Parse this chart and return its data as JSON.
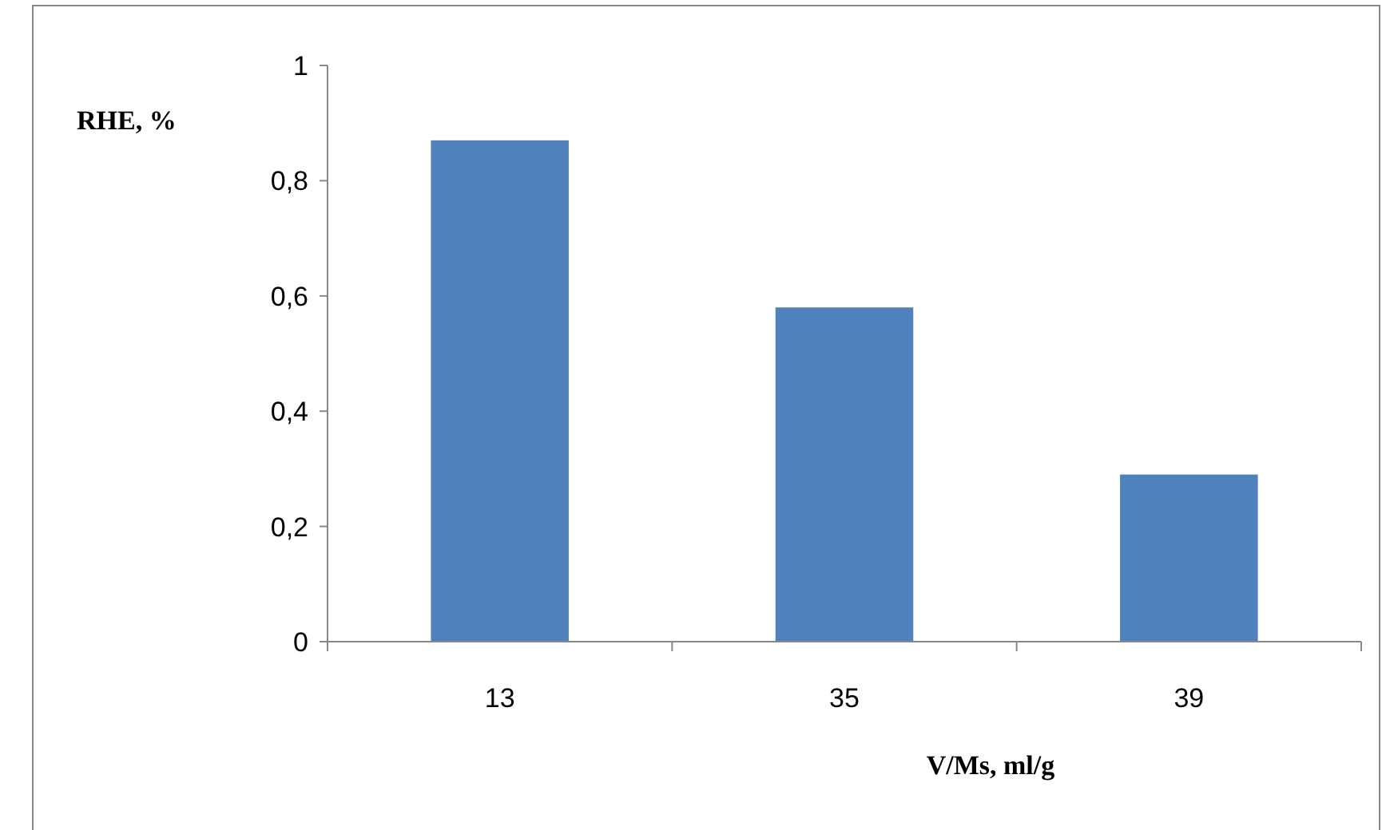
{
  "chart_data": {
    "type": "bar",
    "ylabel": "RHE, %",
    "xlabel": "V/Ms, ml/g",
    "categories": [
      "13",
      "35",
      "39"
    ],
    "values": [
      0.87,
      0.58,
      0.29
    ],
    "color": "#4f81bd",
    "ylim": [
      0,
      1
    ],
    "yticks": [
      0,
      {
        "value": 0.2,
        "label": "0,2"
      },
      {
        "value": 0.4,
        "label": "0,4"
      },
      {
        "value": 0.6,
        "label": "0,6"
      },
      {
        "value": 0.8,
        "label": "0,8"
      },
      1
    ],
    "grid": false
  }
}
